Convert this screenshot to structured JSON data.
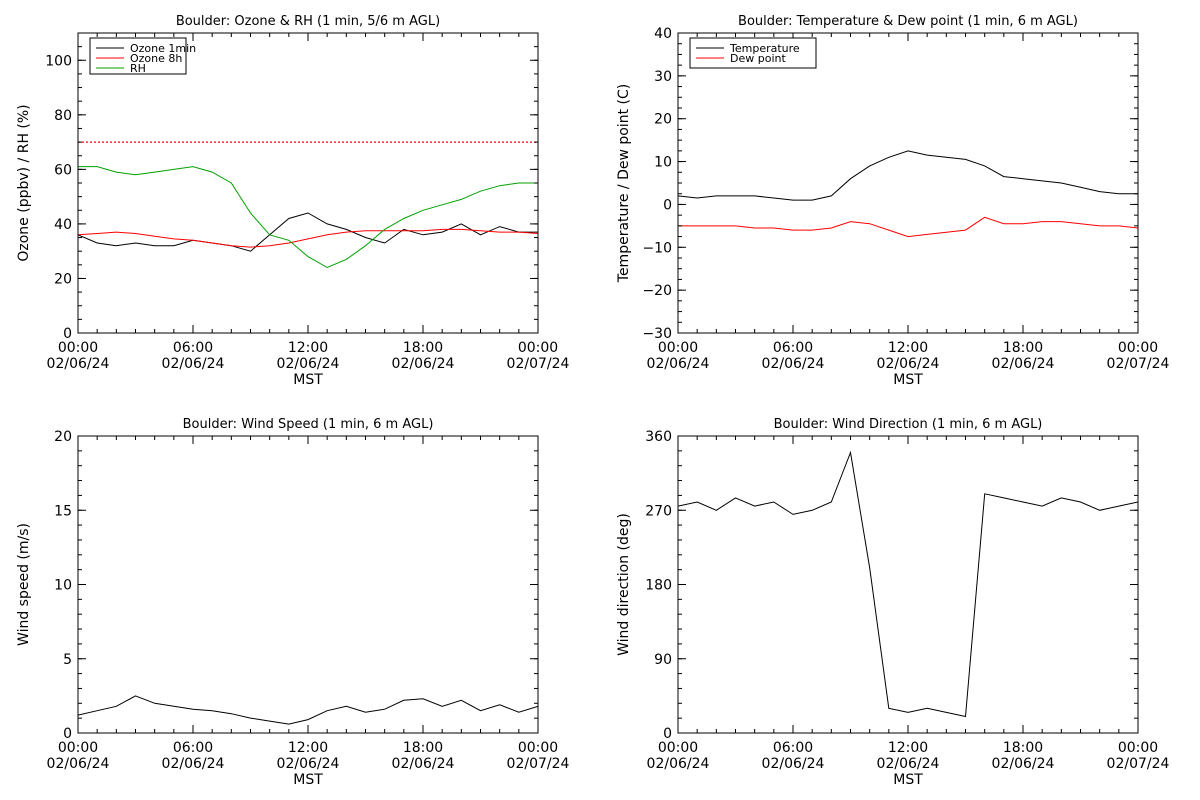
{
  "chart_data": [
    {
      "type": "line",
      "title": "Boulder: Ozone & RH (1 min, 5/6 m AGL)",
      "ylabel": "Ozone (ppbv) / RH (%)",
      "xlabel": "MST",
      "ylim": [
        0,
        110
      ],
      "yticks": [
        "0",
        "20",
        "40",
        "60",
        "80",
        "100"
      ],
      "xticks": [
        {
          "time": "00:00",
          "date": "02/06/24"
        },
        {
          "time": "06:00",
          "date": "02/06/24"
        },
        {
          "time": "12:00",
          "date": "02/06/24"
        },
        {
          "time": "18:00",
          "date": "02/06/24"
        },
        {
          "time": "00:00",
          "date": "02/07/24"
        }
      ],
      "legend": "top-left",
      "reference_line": {
        "y": 70,
        "style": "dotted",
        "color": "#ff0000"
      },
      "series": [
        {
          "name": "Ozone 1min",
          "color": "#000000",
          "x": [
            0,
            1,
            2,
            3,
            4,
            5,
            6,
            7,
            8,
            9,
            10,
            11,
            12,
            13,
            14,
            15,
            16,
            17,
            18,
            19,
            20,
            21,
            22,
            23,
            24
          ],
          "y": [
            36,
            33,
            32,
            33,
            32,
            32,
            34,
            33,
            32,
            30,
            36,
            42,
            44,
            40,
            38,
            35,
            33,
            38,
            36,
            37,
            40,
            36,
            39,
            37,
            37
          ]
        },
        {
          "name": "Ozone 8h",
          "color": "#ff0000",
          "x": [
            0,
            1,
            2,
            3,
            4,
            5,
            6,
            7,
            8,
            9,
            10,
            11,
            12,
            13,
            14,
            15,
            16,
            17,
            18,
            19,
            20,
            21,
            22,
            23,
            24
          ],
          "y": [
            36,
            36.5,
            37,
            36.5,
            35.5,
            34.5,
            34,
            33,
            32,
            31.5,
            32,
            33,
            34.5,
            36,
            37,
            37.5,
            37.5,
            37.5,
            37.5,
            38,
            38,
            37.5,
            37,
            37,
            36.5
          ]
        },
        {
          "name": "RH",
          "color": "#00a000",
          "x": [
            0,
            1,
            2,
            3,
            4,
            5,
            6,
            7,
            8,
            9,
            10,
            11,
            12,
            13,
            14,
            15,
            16,
            17,
            18,
            19,
            20,
            21,
            22,
            23,
            24
          ],
          "y": [
            61,
            61,
            59,
            58,
            59,
            60,
            61,
            59,
            55,
            44,
            36,
            34,
            28,
            24,
            27,
            32,
            38,
            42,
            45,
            47,
            49,
            52,
            54,
            55,
            55
          ]
        }
      ]
    },
    {
      "type": "line",
      "title": "Boulder: Temperature & Dew point (1 min, 6 m AGL)",
      "ylabel": "Temperature / Dew point (C)",
      "xlabel": "MST",
      "ylim": [
        -30,
        40
      ],
      "yticks": [
        "−30",
        "−20",
        "−10",
        "0",
        "10",
        "20",
        "30",
        "40"
      ],
      "xticks": [
        {
          "time": "00:00",
          "date": "02/06/24"
        },
        {
          "time": "06:00",
          "date": "02/06/24"
        },
        {
          "time": "12:00",
          "date": "02/06/24"
        },
        {
          "time": "18:00",
          "date": "02/06/24"
        },
        {
          "time": "00:00",
          "date": "02/07/24"
        }
      ],
      "legend": "top-left",
      "series": [
        {
          "name": "Temperature",
          "color": "#000000",
          "x": [
            0,
            1,
            2,
            3,
            4,
            5,
            6,
            7,
            8,
            9,
            10,
            11,
            12,
            13,
            14,
            15,
            16,
            17,
            18,
            19,
            20,
            21,
            22,
            23,
            24
          ],
          "y": [
            2,
            1.5,
            2,
            2,
            2,
            1.5,
            1,
            1,
            2,
            6,
            9,
            11,
            12.5,
            11.5,
            11,
            10.5,
            9,
            6.5,
            6,
            5.5,
            5,
            4,
            3,
            2.5,
            2.5
          ]
        },
        {
          "name": "Dew point",
          "color": "#ff0000",
          "x": [
            0,
            1,
            2,
            3,
            4,
            5,
            6,
            7,
            8,
            9,
            10,
            11,
            12,
            13,
            14,
            15,
            16,
            17,
            18,
            19,
            20,
            21,
            22,
            23,
            24
          ],
          "y": [
            -5,
            -5,
            -5,
            -5,
            -5.5,
            -5.5,
            -6,
            -6,
            -5.5,
            -4,
            -4.5,
            -6,
            -7.5,
            -7,
            -6.5,
            -6,
            -3,
            -4.5,
            -4.5,
            -4,
            -4,
            -4.5,
            -5,
            -5,
            -5.5
          ]
        }
      ]
    },
    {
      "type": "line",
      "title": "Boulder: Wind Speed (1 min, 6 m AGL)",
      "ylabel": "Wind speed (m/s)",
      "xlabel": "MST",
      "ylim": [
        0,
        20
      ],
      "yticks": [
        "0",
        "5",
        "10",
        "15",
        "20"
      ],
      "xticks": [
        {
          "time": "00:00",
          "date": "02/06/24"
        },
        {
          "time": "06:00",
          "date": "02/06/24"
        },
        {
          "time": "12:00",
          "date": "02/06/24"
        },
        {
          "time": "18:00",
          "date": "02/06/24"
        },
        {
          "time": "00:00",
          "date": "02/07/24"
        }
      ],
      "series": [
        {
          "color": "#000000",
          "x": [
            0,
            1,
            2,
            3,
            4,
            5,
            6,
            7,
            8,
            9,
            10,
            11,
            12,
            13,
            14,
            15,
            16,
            17,
            18,
            19,
            20,
            21,
            22,
            23,
            24
          ],
          "y": [
            1.2,
            1.5,
            1.8,
            2.5,
            2,
            1.8,
            1.6,
            1.5,
            1.3,
            1,
            0.8,
            0.6,
            0.9,
            1.5,
            1.8,
            1.4,
            1.6,
            2.2,
            2.3,
            1.8,
            2.2,
            1.5,
            1.9,
            1.4,
            1.8
          ]
        }
      ]
    },
    {
      "type": "line",
      "title": "Boulder: Wind Direction (1 min, 6 m AGL)",
      "ylabel": "Wind direction (deg)",
      "xlabel": "MST",
      "ylim": [
        0,
        360
      ],
      "yticks": [
        "0",
        "90",
        "180",
        "270",
        "360"
      ],
      "xticks": [
        {
          "time": "00:00",
          "date": "02/06/24"
        },
        {
          "time": "06:00",
          "date": "02/06/24"
        },
        {
          "time": "12:00",
          "date": "02/06/24"
        },
        {
          "time": "18:00",
          "date": "02/06/24"
        },
        {
          "time": "00:00",
          "date": "02/07/24"
        }
      ],
      "series": [
        {
          "color": "#000000",
          "x": [
            0,
            1,
            2,
            3,
            4,
            5,
            6,
            7,
            8,
            9,
            10,
            11,
            12,
            13,
            14,
            15,
            16,
            17,
            18,
            19,
            20,
            21,
            22,
            23,
            24
          ],
          "y": [
            275,
            280,
            270,
            285,
            275,
            280,
            265,
            270,
            280,
            340,
            200,
            30,
            25,
            30,
            25,
            20,
            290,
            285,
            280,
            275,
            285,
            280,
            270,
            275,
            280
          ]
        }
      ]
    }
  ]
}
